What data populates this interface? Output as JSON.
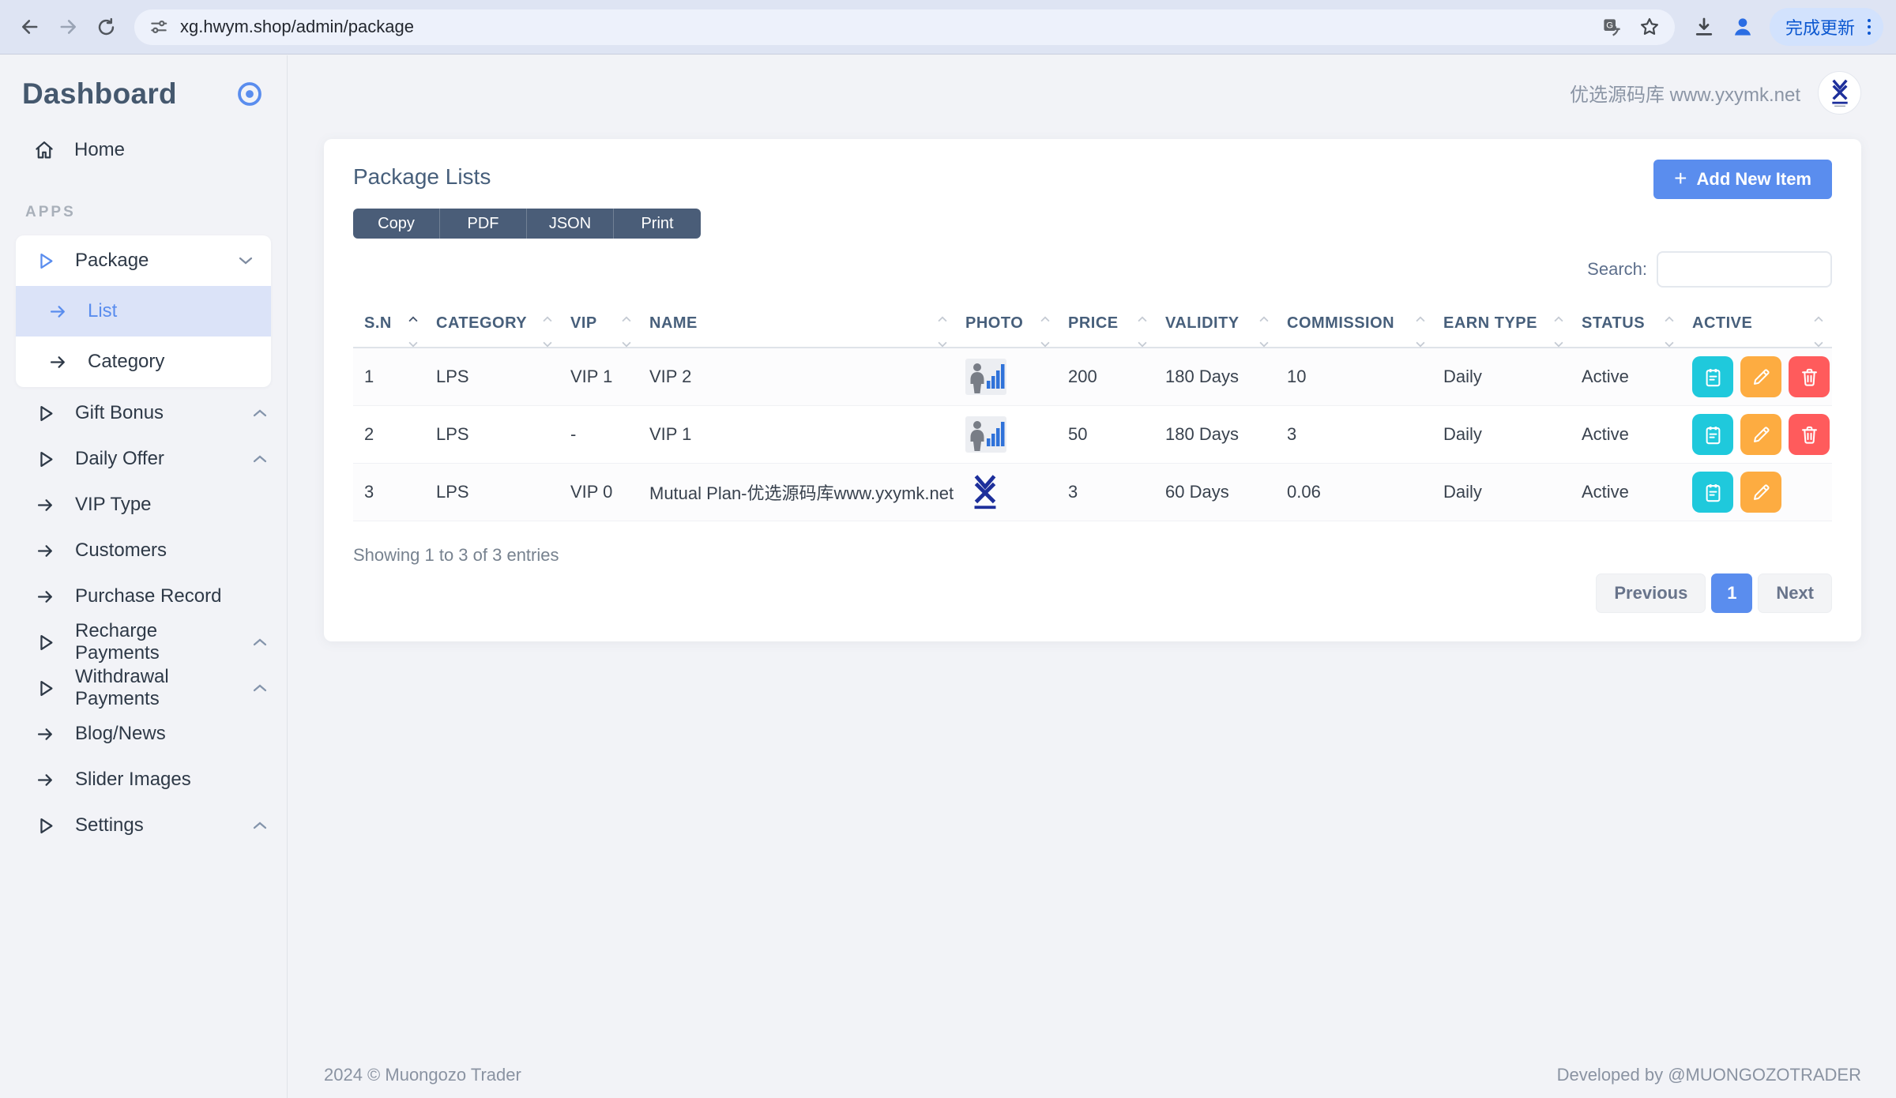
{
  "browser": {
    "url": "xg.hwym.shop/admin/package",
    "update_button_label": "完成更新"
  },
  "sidebar": {
    "title": "Dashboard",
    "home_label": "Home",
    "apps_label": "APPS",
    "package": {
      "label": "Package",
      "list_label": "List",
      "category_label": "Category"
    },
    "items": [
      {
        "label": "Gift Bonus",
        "icon": "play",
        "chevron": "up"
      },
      {
        "label": "Daily Offer",
        "icon": "play",
        "chevron": "up"
      },
      {
        "label": "VIP Type",
        "icon": "arrow"
      },
      {
        "label": "Customers",
        "icon": "arrow"
      },
      {
        "label": "Purchase Record",
        "icon": "arrow"
      },
      {
        "label": "Recharge Payments",
        "icon": "play",
        "chevron": "up"
      },
      {
        "label": "Withdrawal Payments",
        "icon": "play",
        "chevron": "up"
      },
      {
        "label": "Blog/News",
        "icon": "arrow"
      },
      {
        "label": "Slider Images",
        "icon": "arrow"
      },
      {
        "label": "Settings",
        "icon": "play",
        "chevron": "up"
      }
    ]
  },
  "header": {
    "site_label": "优选源码库 www.yxymk.net"
  },
  "page": {
    "title": "Package Lists",
    "add_button_label": "Add New Item",
    "export_buttons": [
      "Copy",
      "PDF",
      "JSON",
      "Print"
    ],
    "search_label": "Search:",
    "search_value": "",
    "table": {
      "columns": [
        "S.N",
        "CATEGORY",
        "VIP",
        "NAME",
        "PHOTO",
        "PRICE",
        "VALIDITY",
        "COMMISSION",
        "EARN TYPE",
        "STATUS",
        "ACTIVE"
      ],
      "sorted_column": "S.N",
      "rows": [
        {
          "sn": "1",
          "category": "LPS",
          "vip": "VIP 1",
          "name": "VIP 2",
          "photo": "person-chart-thumbnail",
          "price": "200",
          "validity": "180 Days",
          "commission": "10",
          "earn_type": "Daily",
          "status": "Active",
          "actions": [
            "details",
            "edit",
            "delete"
          ]
        },
        {
          "sn": "2",
          "category": "LPS",
          "vip": "-",
          "name": "VIP 1",
          "photo": "person-chart-thumbnail",
          "price": "50",
          "validity": "180 Days",
          "commission": "3",
          "earn_type": "Daily",
          "status": "Active",
          "actions": [
            "details",
            "edit",
            "delete"
          ]
        },
        {
          "sn": "3",
          "category": "LPS",
          "vip": "VIP 0",
          "name": "Mutual Plan-优选源码库www.yxymk.net",
          "photo": "yx-logo-thumbnail",
          "price": "3",
          "validity": "60 Days",
          "commission": "0.06",
          "earn_type": "Daily",
          "status": "Active",
          "actions": [
            "details",
            "edit"
          ]
        }
      ]
    },
    "summary": "Showing 1 to 3 of 3 entries",
    "pagination": {
      "previous_label": "Previous",
      "current_page": "1",
      "next_label": "Next"
    }
  },
  "footer": {
    "copyright": "2024 © Muongozo Trader",
    "developer": "Developed by  @MUONGOZOTRADER"
  },
  "colors": {
    "primary": "#5a8dee",
    "info": "#1fc9dc",
    "warning": "#fdac41",
    "danger": "#ff5b5c",
    "dark_button": "#4a5d78",
    "heading": "#475f7b"
  }
}
